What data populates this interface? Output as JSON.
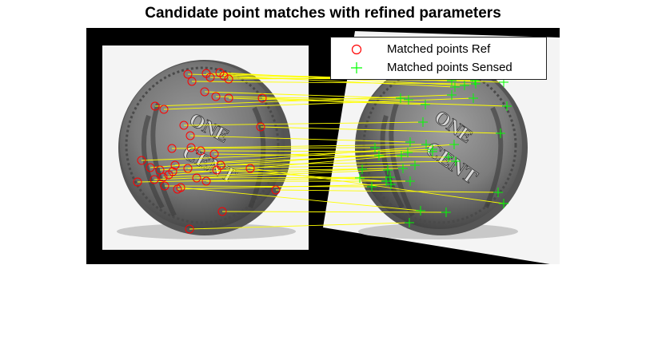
{
  "figure": {
    "title": "Candidate point matches with refined parameters"
  },
  "legend": {
    "entries": [
      {
        "label": "Matched points Ref",
        "marker": "circle",
        "color": "#ff0000"
      },
      {
        "label": "Matched points Sensed",
        "marker": "plus",
        "color": "#00ff00"
      }
    ]
  },
  "colors": {
    "axes_background": "#000000",
    "match_line": "#ffff00",
    "ref_marker": "#ff0000",
    "sensed_marker": "#00ff00"
  },
  "images": {
    "reference": {
      "subject": "coin-one-cent-reverse",
      "printed_text": [
        "ONE",
        "CENT"
      ]
    },
    "sensed": {
      "subject": "coin-one-cent-reverse-rotated",
      "printed_text": [
        "ONE",
        "CENT"
      ]
    }
  },
  "matches_count": 41
}
